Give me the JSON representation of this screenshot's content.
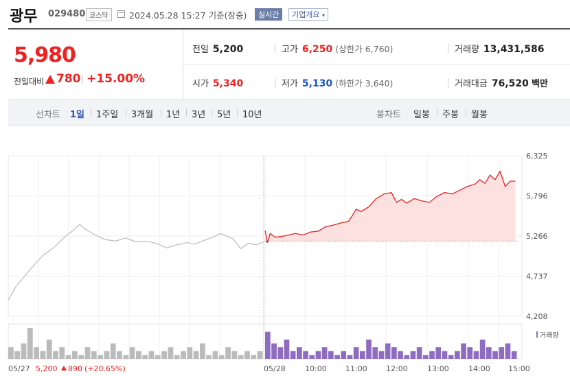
{
  "header": {
    "stock_name": "광무",
    "stock_code": "029480",
    "market": "코스닥",
    "datetime": "2024.05.28 15:27",
    "basis": "기준(장중)",
    "realtime_label": "실시간",
    "company_button": "기업개요"
  },
  "summary": {
    "price": "5,980",
    "change_label": "전일대비",
    "change_value": "780",
    "change_pct": "+15.00%",
    "prev_close": {
      "label": "전일",
      "value": "5,200"
    },
    "open": {
      "label": "시가",
      "value": "5,340"
    },
    "high": {
      "label": "고가",
      "value": "6,250",
      "limit_label": "(상한가 6,760)"
    },
    "low": {
      "label": "저가",
      "value": "5,130",
      "limit_label": "(하한가 3,640)"
    },
    "volume": {
      "label": "거래량",
      "value": "13,431,586"
    },
    "amount": {
      "label": "거래대금",
      "value": "76,520",
      "unit": "백만"
    }
  },
  "tabs": {
    "line_label": "선차트",
    "line_items": [
      "1일",
      "1주일",
      "3개월",
      "1년",
      "3년",
      "5년",
      "10년"
    ],
    "candle_label": "봉차트",
    "candle_items": [
      "일봉",
      "주봉",
      "월봉"
    ]
  },
  "colors": {
    "up": "#e22222",
    "down": "#1a55c9",
    "prev_day": "#bbbbbb",
    "volume": "#8e6cc2",
    "fill": "#fde0e0"
  },
  "chart_data": {
    "type": "line",
    "ylim": [
      4208,
      6325
    ],
    "yticks": [
      "6,325",
      "5,796",
      "5,266",
      "4,737",
      "4,208"
    ],
    "reference_price": 5200,
    "xticks": [
      "05/27",
      "05/28",
      "10:00",
      "11:00",
      "12:00",
      "13:00",
      "14:00",
      "15:00"
    ],
    "prev_day_caption": {
      "date": "05/27",
      "close": "5,200",
      "change": "890",
      "pct": "(+20.65%)"
    },
    "volume_legend": "거래량",
    "series": [
      {
        "segment": "prev_day",
        "x": [
          0.0,
          0.03,
          0.06,
          0.1,
          0.14,
          0.18,
          0.22,
          0.25,
          0.28,
          0.3,
          0.34,
          0.38,
          0.42,
          0.46,
          0.5,
          0.54,
          0.58,
          0.62,
          0.66,
          0.7,
          0.73,
          0.76,
          0.8,
          0.83,
          0.86,
          0.88,
          0.91,
          0.94,
          0.97,
          1.0
        ],
        "y": [
          4420,
          4600,
          4720,
          4880,
          5020,
          5120,
          5250,
          5330,
          5420,
          5360,
          5280,
          5220,
          5200,
          5240,
          5190,
          5200,
          5170,
          5110,
          5150,
          5180,
          5160,
          5200,
          5250,
          5300,
          5260,
          5230,
          5100,
          5170,
          5150,
          5190
        ]
      },
      {
        "segment": "today",
        "x": [
          0.0,
          0.01,
          0.02,
          0.04,
          0.08,
          0.12,
          0.15,
          0.18,
          0.21,
          0.24,
          0.27,
          0.3,
          0.33,
          0.35,
          0.36,
          0.38,
          0.41,
          0.44,
          0.47,
          0.5,
          0.52,
          0.54,
          0.56,
          0.59,
          0.62,
          0.65,
          0.68,
          0.71,
          0.74,
          0.77,
          0.8,
          0.83,
          0.85,
          0.87,
          0.89,
          0.91,
          0.93,
          0.95,
          0.97,
          0.99
        ],
        "y": [
          5340,
          5180,
          5300,
          5250,
          5270,
          5300,
          5280,
          5320,
          5330,
          5390,
          5410,
          5440,
          5460,
          5560,
          5620,
          5590,
          5650,
          5760,
          5820,
          5840,
          5710,
          5750,
          5700,
          5760,
          5730,
          5710,
          5790,
          5840,
          5820,
          5870,
          5920,
          5950,
          6010,
          5960,
          6070,
          6010,
          6120,
          5920,
          5990,
          5990
        ]
      }
    ],
    "volume": {
      "prev_day": [
        3,
        2,
        4,
        8,
        3,
        2,
        5,
        2,
        3,
        1,
        2,
        1,
        3,
        2,
        1,
        2,
        4,
        2,
        1,
        3,
        2,
        1,
        2,
        1,
        2,
        3,
        1,
        2,
        3,
        2,
        4,
        1,
        2,
        1,
        3,
        2,
        1,
        2,
        1,
        2
      ],
      "today": [
        7,
        4,
        3,
        5,
        2,
        3,
        2,
        1,
        2,
        3,
        2,
        1,
        2,
        1,
        3,
        2,
        5,
        3,
        2,
        4,
        3,
        2,
        1,
        2,
        3,
        1,
        2,
        3,
        2,
        1,
        2,
        4,
        3,
        2,
        5,
        3,
        2,
        3,
        4,
        2
      ]
    }
  }
}
